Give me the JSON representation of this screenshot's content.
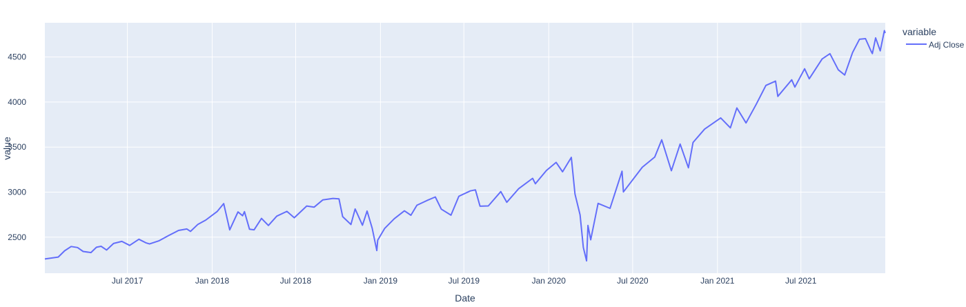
{
  "chart_data": {
    "type": "line",
    "xlabel": "Date",
    "ylabel": "value",
    "legend_title": "variable",
    "legend_position": "top-right",
    "grid": true,
    "colors": {
      "plot_bg": "#E5ECF6",
      "line": "#636EFA",
      "text": "#2a3f5f"
    },
    "xlim": [
      "2017-01-03",
      "2021-12-31"
    ],
    "ylim": [
      2100,
      4880
    ],
    "x_ticks": [
      {
        "date": "2017-07-01",
        "label": "Jul 2017"
      },
      {
        "date": "2018-01-01",
        "label": "Jan 2018"
      },
      {
        "date": "2018-07-01",
        "label": "Jul 2018"
      },
      {
        "date": "2019-01-01",
        "label": "Jan 2019"
      },
      {
        "date": "2019-07-01",
        "label": "Jul 2019"
      },
      {
        "date": "2020-01-01",
        "label": "Jan 2020"
      },
      {
        "date": "2020-07-01",
        "label": "Jul 2020"
      },
      {
        "date": "2021-01-01",
        "label": "Jan 2021"
      },
      {
        "date": "2021-07-01",
        "label": "Jul 2021"
      }
    ],
    "y_ticks": [
      {
        "value": 2500,
        "label": "2500"
      },
      {
        "value": 3000,
        "label": "3000"
      },
      {
        "value": 3500,
        "label": "3500"
      },
      {
        "value": 4000,
        "label": "4000"
      },
      {
        "value": 4500,
        "label": "4500"
      }
    ],
    "series": [
      {
        "name": "Adj Close",
        "points": [
          [
            "2017-01-03",
            2258
          ],
          [
            "2017-01-20",
            2271
          ],
          [
            "2017-02-01",
            2279
          ],
          [
            "2017-02-15",
            2349
          ],
          [
            "2017-03-01",
            2396
          ],
          [
            "2017-03-15",
            2385
          ],
          [
            "2017-03-27",
            2341
          ],
          [
            "2017-04-13",
            2329
          ],
          [
            "2017-04-25",
            2388
          ],
          [
            "2017-05-05",
            2399
          ],
          [
            "2017-05-17",
            2357
          ],
          [
            "2017-06-01",
            2430
          ],
          [
            "2017-06-19",
            2453
          ],
          [
            "2017-07-06",
            2409
          ],
          [
            "2017-07-26",
            2477
          ],
          [
            "2017-08-10",
            2438
          ],
          [
            "2017-08-18",
            2425
          ],
          [
            "2017-09-08",
            2461
          ],
          [
            "2017-09-29",
            2519
          ],
          [
            "2017-10-20",
            2575
          ],
          [
            "2017-11-07",
            2591
          ],
          [
            "2017-11-15",
            2564
          ],
          [
            "2017-12-01",
            2642
          ],
          [
            "2017-12-18",
            2690
          ],
          [
            "2018-01-12",
            2786
          ],
          [
            "2018-01-26",
            2873
          ],
          [
            "2018-02-05",
            2649
          ],
          [
            "2018-02-08",
            2581
          ],
          [
            "2018-02-26",
            2780
          ],
          [
            "2018-03-08",
            2738
          ],
          [
            "2018-03-12",
            2783
          ],
          [
            "2018-03-23",
            2588
          ],
          [
            "2018-04-02",
            2582
          ],
          [
            "2018-04-18",
            2708
          ],
          [
            "2018-05-03",
            2630
          ],
          [
            "2018-05-21",
            2733
          ],
          [
            "2018-06-12",
            2786
          ],
          [
            "2018-06-28",
            2716
          ],
          [
            "2018-07-25",
            2846
          ],
          [
            "2018-08-10",
            2833
          ],
          [
            "2018-08-29",
            2914
          ],
          [
            "2018-09-20",
            2930
          ],
          [
            "2018-10-03",
            2925
          ],
          [
            "2018-10-11",
            2728
          ],
          [
            "2018-10-29",
            2641
          ],
          [
            "2018-11-07",
            2813
          ],
          [
            "2018-11-23",
            2632
          ],
          [
            "2018-12-03",
            2790
          ],
          [
            "2018-12-14",
            2599
          ],
          [
            "2018-12-24",
            2351
          ],
          [
            "2018-12-26",
            2467
          ],
          [
            "2019-01-10",
            2596
          ],
          [
            "2019-01-31",
            2704
          ],
          [
            "2019-02-22",
            2792
          ],
          [
            "2019-03-08",
            2743
          ],
          [
            "2019-03-21",
            2854
          ],
          [
            "2019-04-12",
            2907
          ],
          [
            "2019-04-30",
            2946
          ],
          [
            "2019-05-13",
            2811
          ],
          [
            "2019-06-03",
            2744
          ],
          [
            "2019-06-20",
            2954
          ],
          [
            "2019-07-15",
            3014
          ],
          [
            "2019-07-26",
            3025
          ],
          [
            "2019-08-05",
            2844
          ],
          [
            "2019-08-23",
            2847
          ],
          [
            "2019-09-19",
            3006
          ],
          [
            "2019-10-02",
            2887
          ],
          [
            "2019-10-28",
            3039
          ],
          [
            "2019-11-27",
            3153
          ],
          [
            "2019-12-03",
            3093
          ],
          [
            "2019-12-27",
            3240
          ],
          [
            "2020-01-17",
            3330
          ],
          [
            "2020-01-31",
            3226
          ],
          [
            "2020-02-19",
            3386
          ],
          [
            "2020-02-27",
            2979
          ],
          [
            "2020-03-09",
            2747
          ],
          [
            "2020-03-16",
            2386
          ],
          [
            "2020-03-23",
            2237
          ],
          [
            "2020-03-26",
            2630
          ],
          [
            "2020-04-01",
            2471
          ],
          [
            "2020-04-17",
            2875
          ],
          [
            "2020-05-13",
            2820
          ],
          [
            "2020-06-08",
            3232
          ],
          [
            "2020-06-11",
            3002
          ],
          [
            "2020-07-22",
            3276
          ],
          [
            "2020-08-18",
            3390
          ],
          [
            "2020-09-02",
            3580
          ],
          [
            "2020-09-23",
            3237
          ],
          [
            "2020-10-12",
            3534
          ],
          [
            "2020-10-30",
            3270
          ],
          [
            "2020-11-09",
            3551
          ],
          [
            "2020-12-04",
            3699
          ],
          [
            "2021-01-08",
            3824
          ],
          [
            "2021-01-29",
            3714
          ],
          [
            "2021-02-12",
            3934
          ],
          [
            "2021-03-04",
            3768
          ],
          [
            "2021-03-26",
            3974
          ],
          [
            "2021-04-16",
            4185
          ],
          [
            "2021-05-07",
            4232
          ],
          [
            "2021-05-12",
            4063
          ],
          [
            "2021-06-11",
            4247
          ],
          [
            "2021-06-18",
            4166
          ],
          [
            "2021-07-09",
            4369
          ],
          [
            "2021-07-19",
            4258
          ],
          [
            "2021-08-16",
            4479
          ],
          [
            "2021-09-02",
            4537
          ],
          [
            "2021-09-20",
            4358
          ],
          [
            "2021-10-04",
            4300
          ],
          [
            "2021-10-21",
            4549
          ],
          [
            "2021-11-05",
            4697
          ],
          [
            "2021-11-18",
            4704
          ],
          [
            "2021-11-30",
            4567
          ],
          [
            "2021-12-03",
            4538
          ],
          [
            "2021-12-10",
            4712
          ],
          [
            "2021-12-20",
            4568
          ],
          [
            "2021-12-29",
            4793
          ],
          [
            "2021-12-31",
            4766
          ]
        ]
      }
    ]
  }
}
